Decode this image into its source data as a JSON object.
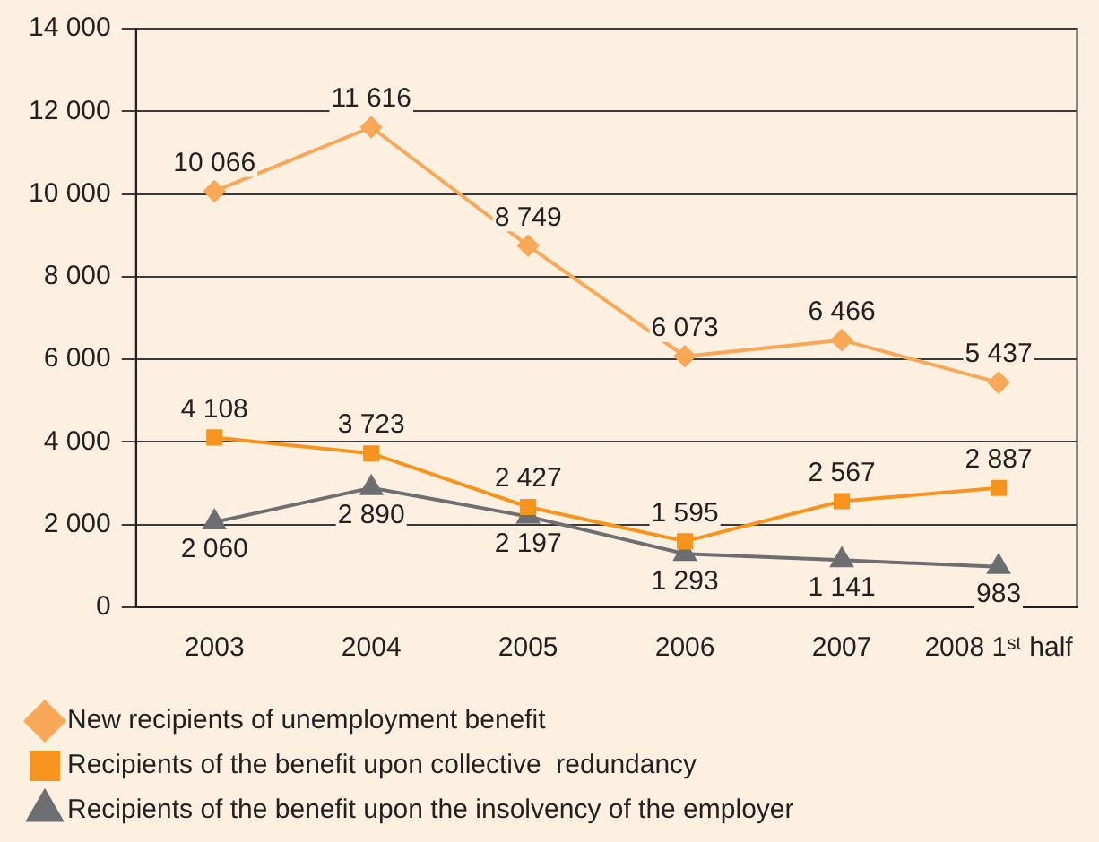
{
  "chart_data": {
    "type": "line",
    "categories": [
      "2003",
      "2004",
      "2005",
      "2006",
      "2007",
      "2008 1ˢᵗ half"
    ],
    "series": [
      {
        "name": "New recipients of unemployment benefit",
        "color": "#f9a857",
        "marker": "diamond",
        "values": [
          10066,
          11616,
          8749,
          6073,
          6466,
          5437
        ],
        "value_labels": [
          "10 066",
          "11 616",
          "8 749",
          "6 073",
          "6 466",
          "5 437"
        ]
      },
      {
        "name": "Recipients of the benefit upon collective  redundancy",
        "color": "#f7941d",
        "marker": "square",
        "values": [
          4108,
          3723,
          2427,
          1595,
          2567,
          2887
        ],
        "value_labels": [
          "4 108",
          "3 723",
          "2 427",
          "1 595",
          "2 567",
          "2 887"
        ]
      },
      {
        "name": "Recipients of the benefit upon the insolvency of the employer",
        "color": "#6d6e71",
        "marker": "triangle",
        "values": [
          2060,
          2890,
          2197,
          1293,
          1141,
          983
        ],
        "value_labels": [
          "2 060",
          "2 890",
          "2 197",
          "1 293",
          "1 141",
          "983"
        ]
      }
    ],
    "ylim": [
      0,
      14000
    ],
    "yticks": [
      {
        "value": 0,
        "label": "0"
      },
      {
        "value": 2000,
        "label": "2 000"
      },
      {
        "value": 4000,
        "label": "4 000"
      },
      {
        "value": 6000,
        "label": "6 000"
      },
      {
        "value": 8000,
        "label": "8 000"
      },
      {
        "value": 10000,
        "label": "10 000"
      },
      {
        "value": 12000,
        "label": "12 000"
      },
      {
        "value": 14000,
        "label": "14 000"
      }
    ],
    "grid": "y",
    "legend": "bottom left",
    "line_style": "solid"
  }
}
